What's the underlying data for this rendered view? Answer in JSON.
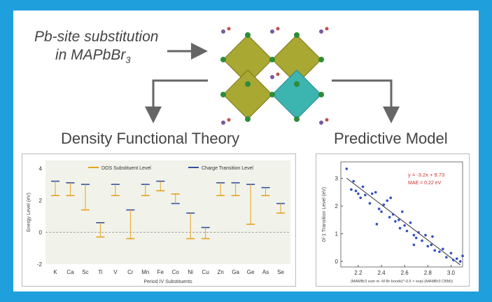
{
  "graphic": {
    "input_line1": "Pb-site substitution",
    "input_line2_prefix": "in MAPbBr",
    "input_line2_sub": "3",
    "colors": {
      "frame": "#1fa0dc",
      "octa_olive": "#a8a832",
      "octa_teal": "#3cb4b0",
      "arrow": "#666666"
    }
  },
  "dft": {
    "heading": "Density Functional Theory",
    "chart_data": {
      "type": "scatter",
      "title": "",
      "xlabel": "Period IV Substituents",
      "ylabel": "Energy Level (eV)",
      "ylim": [
        -2,
        4.5
      ],
      "yticks": [
        "4",
        "2",
        "0",
        "-2"
      ],
      "categories": [
        "K",
        "Ca",
        "Sc",
        "Ti",
        "V",
        "Cr",
        "Mn",
        "Fe",
        "Co",
        "Ni",
        "Cu",
        "Zn",
        "Ga",
        "Ge",
        "As",
        "Se"
      ],
      "legend": [
        "DOS Substituent Level",
        "Charge Transition Level"
      ],
      "legend_placement": "top",
      "series": [
        {
          "name": "Charge Transition Level",
          "values": [
            3.2,
            3.1,
            3.0,
            0.6,
            3.0,
            1.4,
            3.0,
            3.2,
            1.8,
            1.2,
            0.3,
            3.1,
            3.1,
            3.0,
            2.8,
            1.8
          ]
        },
        {
          "name": "DOS Substituent Level",
          "values": [
            2.3,
            2.3,
            1.4,
            -0.3,
            2.3,
            -0.4,
            2.3,
            2.6,
            2.4,
            -0.4,
            -0.4,
            2.3,
            2.3,
            0.5,
            2.3,
            1.2
          ]
        }
      ]
    }
  },
  "model": {
    "heading": "Predictive Model",
    "chart_data": {
      "type": "scatter",
      "title": "",
      "xlabel": "(MAMBr3 sum m. M-Br bonds)^-0.5 × exp(-(MAMBr3 CBM))",
      "ylabel": "0/-1 Transition Level (eV)",
      "xlim": [
        2.05,
        3.1
      ],
      "ylim": [
        -0.2,
        3.6
      ],
      "xticks": [
        "2.2",
        "2.4",
        "2.6",
        "2.8",
        "3.0"
      ],
      "yticks": [
        "0",
        "1",
        "2",
        "3"
      ],
      "annotations": [
        "y = -3.2x + 9.73",
        "MAE = 0.22 eV"
      ],
      "fit": {
        "slope": -3.2,
        "intercept": 9.73
      },
      "x": [
        2.1,
        2.14,
        2.16,
        2.18,
        2.2,
        2.22,
        2.24,
        2.26,
        2.3,
        2.32,
        2.35,
        2.38,
        2.4,
        2.42,
        2.45,
        2.47,
        2.5,
        2.52,
        2.55,
        2.58,
        2.6,
        2.62,
        2.65,
        2.68,
        2.7,
        2.72,
        2.75,
        2.78,
        2.8,
        2.83,
        2.86,
        2.9,
        2.93,
        2.96,
        3.0,
        3.02,
        3.05,
        3.08,
        3.1,
        2.36,
        2.48,
        2.56,
        2.68,
        2.84
      ],
      "y": [
        3.35,
        2.6,
        2.9,
        2.55,
        2.45,
        2.3,
        2.7,
        2.4,
        2.1,
        2.45,
        2.5,
        1.9,
        1.8,
        2.05,
        2.2,
        1.6,
        1.7,
        1.45,
        1.5,
        1.8,
        1.3,
        1.1,
        1.4,
        0.95,
        0.85,
        1.05,
        0.75,
        0.95,
        0.55,
        0.6,
        0.4,
        0.35,
        0.45,
        0.15,
        0.3,
        0.05,
        0.1,
        0.0,
        0.2,
        1.35,
        2.3,
        1.2,
        0.6,
        0.9
      ]
    }
  }
}
